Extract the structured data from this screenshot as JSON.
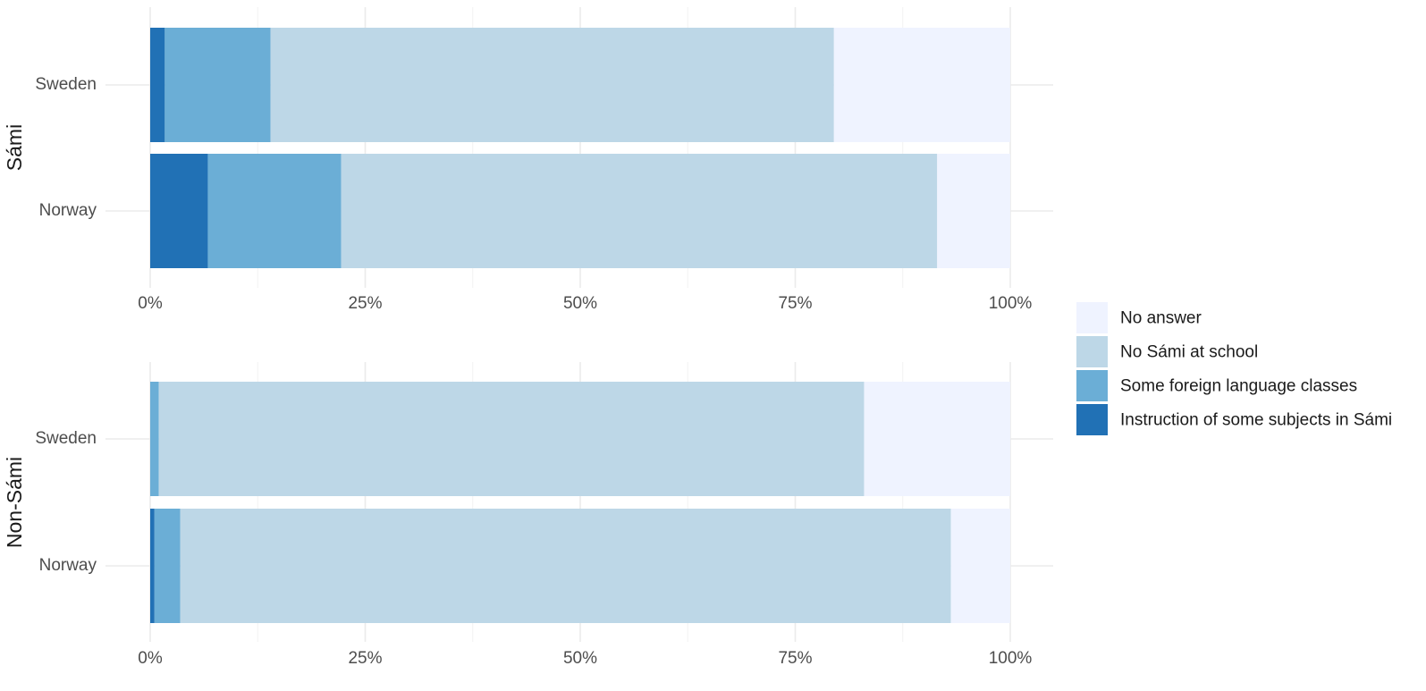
{
  "chart_data": {
    "type": "bar",
    "orientation": "horizontal",
    "stacked": "percent",
    "xlim": [
      0,
      100
    ],
    "x_ticks": [
      "0%",
      "25%",
      "50%",
      "75%",
      "100%"
    ],
    "grid": true,
    "legend_position": "right",
    "categories_order": [
      "Sweden",
      "Norway"
    ],
    "legend": [
      {
        "name": "No answer",
        "color": "#eff3ff"
      },
      {
        "name": "No Sámi at school",
        "color": "#bdd7e7"
      },
      {
        "name": "Some foreign language classes",
        "color": "#6baed6"
      },
      {
        "name": "Instruction of some subjects in Sámi",
        "color": "#2171b5"
      }
    ],
    "segment_order": [
      "Instruction of some subjects in Sámi",
      "Some foreign language classes",
      "No Sámi at school",
      "No answer"
    ],
    "facets": [
      {
        "label": "Sámi",
        "bars": [
          {
            "category": "Sweden",
            "values": [
              1.7,
              12.3,
              65.5,
              20.5
            ]
          },
          {
            "category": "Norway",
            "values": [
              6.7,
              15.5,
              69.3,
              8.5
            ]
          }
        ]
      },
      {
        "label": "Non-Sámi",
        "bars": [
          {
            "category": "Sweden",
            "values": [
              0.0,
              1.0,
              82.0,
              17.0
            ]
          },
          {
            "category": "Norway",
            "values": [
              0.5,
              3.0,
              89.6,
              6.9
            ]
          }
        ]
      }
    ]
  }
}
